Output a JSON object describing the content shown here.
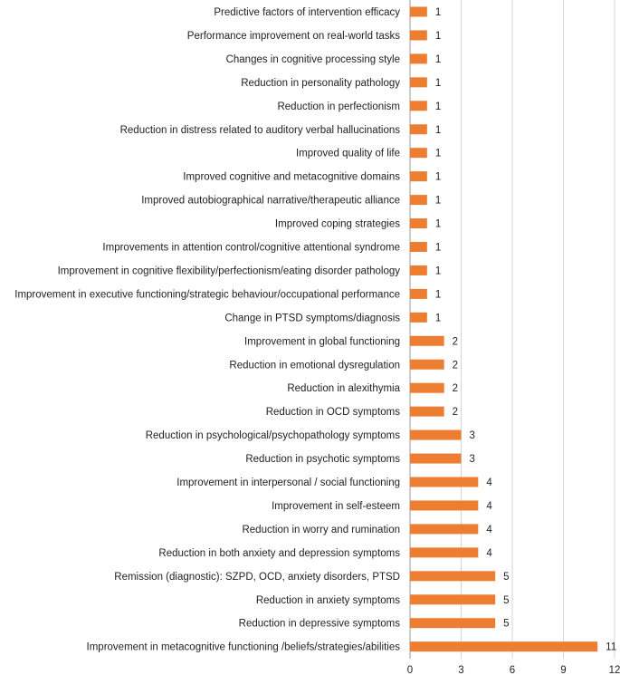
{
  "chart_data": {
    "type": "bar",
    "orientation": "horizontal",
    "categories": [
      "Predictive factors of intervention efficacy",
      "Performance improvement on real-world tasks",
      "Changes in cognitive processing style",
      "Reduction in personality pathology",
      "Reduction in perfectionism",
      "Reduction in distress related to auditory verbal hallucinations",
      "Improved quality of life",
      "Improved cognitive and metacognitive domains",
      "Improved autobiographical narrative/therapeutic alliance",
      "Improved coping strategies",
      "Improvements in attention control/cognitive attentional syndrome",
      "Improvement in cognitive flexibility/perfectionism/eating disorder pathology",
      "Improvement in executive functioning/strategic behaviour/occupational performance",
      "Change in PTSD symptoms/diagnosis",
      "Improvement in global functioning",
      "Reduction in emotional dysregulation",
      "Reduction in alexithymia",
      "Reduction in OCD symptoms",
      "Reduction in psychological/psychopathology symptoms",
      "Reduction in psychotic symptoms",
      "Improvement in interpersonal / social functioning",
      "Improvement in self-esteem",
      "Reduction in worry and rumination",
      "Reduction in both anxiety and depression symptoms",
      "Remission (diagnostic): SZPD, OCD, anxiety disorders, PTSD",
      "Reduction in anxiety symptoms",
      "Reduction in depressive symptoms",
      "Improvement in metacognitive functioning /beliefs/strategies/abilities"
    ],
    "values": [
      1,
      1,
      1,
      1,
      1,
      1,
      1,
      1,
      1,
      1,
      1,
      1,
      1,
      1,
      2,
      2,
      2,
      2,
      3,
      3,
      4,
      4,
      4,
      4,
      5,
      5,
      5,
      11
    ],
    "xticks": [
      0,
      3,
      6,
      9,
      12
    ],
    "xlim": [
      0,
      12
    ],
    "title": "",
    "xlabel": "",
    "ylabel": "",
    "grid": true,
    "bar_color": "#ED7D31",
    "data_labels": true
  }
}
